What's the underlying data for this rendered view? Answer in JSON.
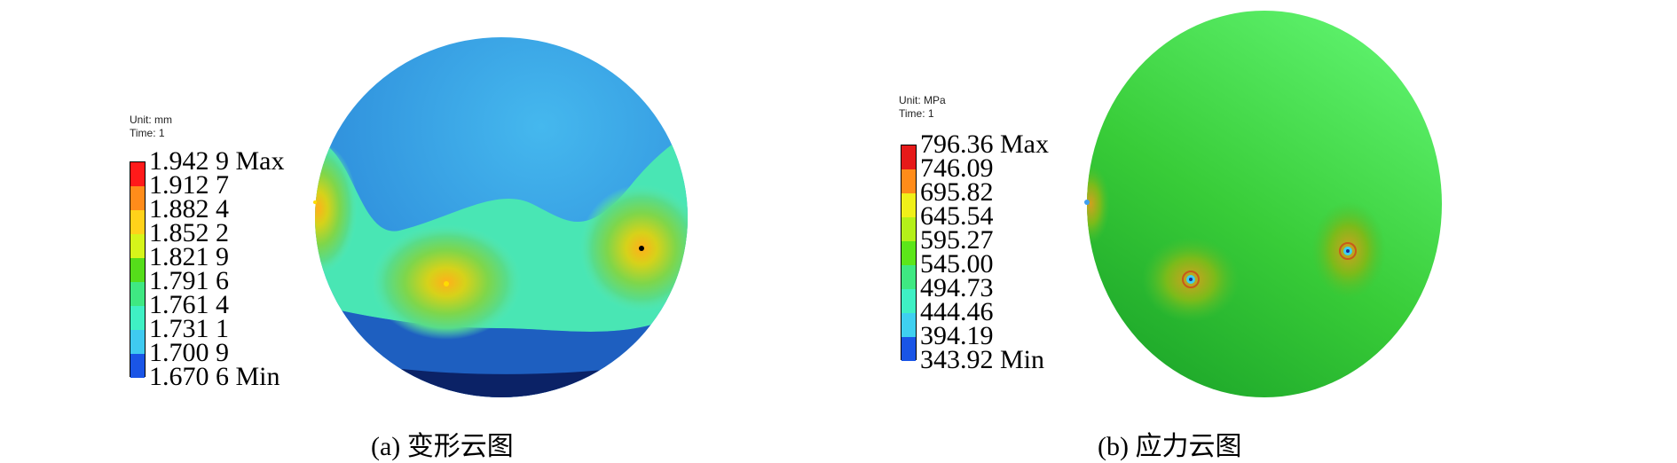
{
  "panels": [
    {
      "id": "a",
      "unit": "Unit: mm",
      "time": "Time: 1",
      "levels": [
        "1.942 9 Max",
        "1.912 7",
        "1.882 4",
        "1.852 2",
        "1.821 9",
        "1.791 6",
        "1.761 4",
        "1.731 1",
        "1.700 9",
        "1.670 6 Min"
      ],
      "swatch_colors": [
        "#ff1a1a",
        "#ff8c1a",
        "#ffd21a",
        "#d6f51a",
        "#55dd1a",
        "#3fe882",
        "#3ff0c4",
        "#3fcaf0",
        "#1a55e6"
      ],
      "caption": "(a) 变形云图"
    },
    {
      "id": "b",
      "unit": "Unit: MPa",
      "time": "Time: 1",
      "levels": [
        "796.36 Max",
        "746.09",
        "695.82",
        "645.54",
        "595.27",
        "545.00",
        "494.73",
        "444.46",
        "394.19",
        "343.92 Min"
      ],
      "swatch_colors": [
        "#e61a1a",
        "#ff8c1a",
        "#f0f01a",
        "#b4f01a",
        "#5ce61a",
        "#3fe882",
        "#3ff0c4",
        "#3fd0f0",
        "#1a55e6"
      ],
      "caption": "(b) 应力云图"
    }
  ]
}
